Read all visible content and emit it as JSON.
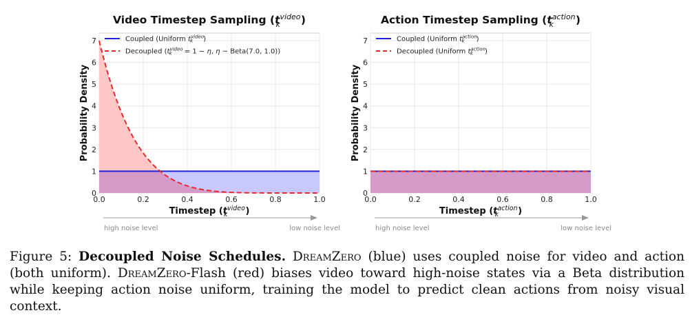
{
  "figure": {
    "number_label": "Figure 5:",
    "title": "Decoupled Noise Schedules.",
    "caption_parts": {
      "model_name_1": "DreamZero",
      "text_1": " (blue) uses coupled noise for video and action (both uniform). ",
      "model_name_2": "DreamZero",
      "text_2": "-Flash (red) biases video toward high-noise states via a Beta distribution while keeping action noise uniform, training the model to predict clean actions from noisy visual context."
    }
  },
  "colors": {
    "coupled": "#2020e0",
    "decoupled": "#e8282d",
    "coupled_fill": "#c8c8ff",
    "decoupled_fill": "#ffc6c6",
    "overlap_fill": "#d49ac8"
  },
  "chart_data": [
    {
      "type": "line",
      "title": "Video Timestep Sampling",
      "title_symbol": "t",
      "title_sub": "k",
      "title_sup": "video",
      "xlabel": "Timestep",
      "xlabel_symbol": "t",
      "xlabel_sub": "k",
      "xlabel_sup": "video",
      "ylabel": "Probability Density",
      "xlim": [
        0,
        1
      ],
      "ylim": [
        0,
        7.35
      ],
      "xticks": [
        "0.0",
        "0.2",
        "0.4",
        "0.6",
        "0.8",
        "1.0"
      ],
      "yticks": [
        "0",
        "1",
        "2",
        "3",
        "4",
        "5",
        "6",
        "7"
      ],
      "grid": true,
      "legend_position": "top-left",
      "legend": [
        "Coupled (Uniform t_k^video)",
        "Decoupled (t_k^video = 1 − η,  η ~ Beta(7.0, 1.0))"
      ],
      "series": [
        {
          "name": "Coupled",
          "kind": "uniform",
          "density": 1.0,
          "style": "solid"
        },
        {
          "name": "Decoupled",
          "kind": "beta-flipped",
          "alpha": 7.0,
          "beta": 1.0,
          "formula": "7(1-t)^6",
          "style": "dashed"
        }
      ],
      "arrow": {
        "left_label": "high noise level",
        "right_label": "low noise level"
      }
    },
    {
      "type": "line",
      "title": "Action Timestep Sampling",
      "title_symbol": "t",
      "title_sub": "k",
      "title_sup": "action",
      "xlabel": "Timestep",
      "xlabel_symbol": "t",
      "xlabel_sub": "k",
      "xlabel_sup": "action",
      "ylabel": "Probability Density",
      "xlim": [
        0,
        1
      ],
      "ylim": [
        0,
        7.35
      ],
      "xticks": [
        "0.0",
        "0.2",
        "0.4",
        "0.6",
        "0.8",
        "1.0"
      ],
      "yticks": [
        "0",
        "1",
        "2",
        "3",
        "4",
        "5",
        "6",
        "7"
      ],
      "grid": true,
      "legend_position": "top-left",
      "legend": [
        "Coupled (Uniform t_k^action)",
        "Decoupled (Uniform t_k^action)"
      ],
      "series": [
        {
          "name": "Coupled",
          "kind": "uniform",
          "density": 1.0,
          "style": "solid"
        },
        {
          "name": "Decoupled",
          "kind": "uniform",
          "density": 1.0,
          "style": "dashed"
        }
      ],
      "arrow": {
        "left_label": "high noise level",
        "right_label": "low noise level"
      }
    }
  ]
}
